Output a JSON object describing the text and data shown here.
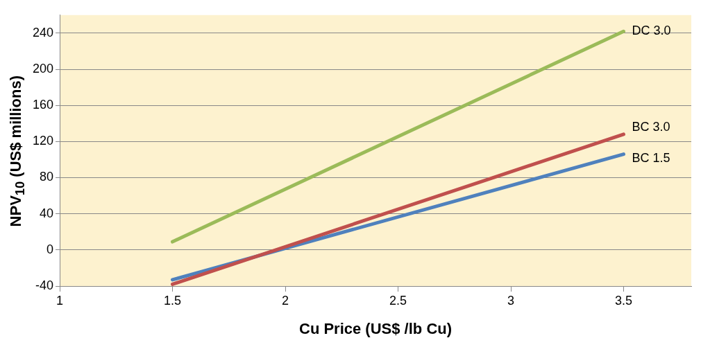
{
  "chart_data": {
    "type": "line",
    "xlabel": "Cu Price (US$ /lb Cu)",
    "ylabel": "NPV$_{10}$ (US$ millions)",
    "x": [
      1.5,
      3.5
    ],
    "series": [
      {
        "name": "DC 3.0",
        "color": "#9bbb59",
        "values": [
          9,
          242
        ]
      },
      {
        "name": "BC 3.0",
        "color": "#c0504d",
        "values": [
          -38,
          128
        ]
      },
      {
        "name": "BC 1.5",
        "color": "#4f81bd",
        "values": [
          -33,
          106
        ]
      }
    ],
    "xlim": [
      1,
      3.8
    ],
    "xticks": [
      1,
      1.5,
      2,
      2.5,
      3,
      3.5
    ],
    "ylim": [
      -40,
      260
    ],
    "yticks": [
      -40,
      0,
      40,
      80,
      120,
      160,
      200,
      240
    ],
    "grid": "y",
    "legend": false,
    "marker": "none",
    "line_style": "solid"
  }
}
